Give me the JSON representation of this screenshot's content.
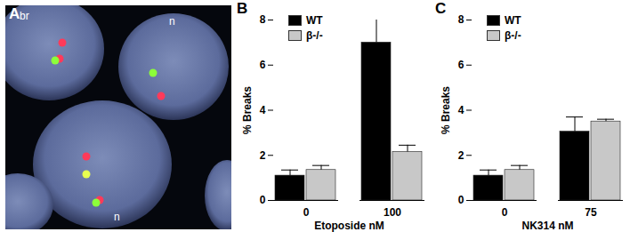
{
  "image_panel": {
    "title": "A",
    "labels": [
      "br",
      "n",
      "n"
    ]
  },
  "chart_data": [
    {
      "type": "bar",
      "title": "B",
      "xlabel": "Etoposide nM",
      "ylabel": "% Breaks",
      "categories": [
        "0",
        "100"
      ],
      "series": [
        {
          "name": "WT",
          "color": "#000000",
          "values": [
            1.1,
            7.0
          ],
          "errors": [
            0.25,
            1.05
          ]
        },
        {
          "name": "β-/-",
          "color": "#c8c8c8",
          "values": [
            1.35,
            2.15
          ],
          "errors": [
            0.2,
            0.3
          ]
        }
      ],
      "ylim": [
        0,
        8
      ],
      "yticks": [
        0,
        2,
        4,
        6,
        8
      ],
      "grid": false,
      "legend": "top-left"
    },
    {
      "type": "bar",
      "title": "C",
      "xlabel": "NK314 nM",
      "ylabel": "% Breaks",
      "categories": [
        "0",
        "75"
      ],
      "series": [
        {
          "name": "WT",
          "color": "#000000",
          "values": [
            1.1,
            3.05
          ],
          "errors": [
            0.25,
            0.65
          ]
        },
        {
          "name": "β-/-",
          "color": "#c8c8c8",
          "values": [
            1.35,
            3.5
          ],
          "errors": [
            0.2,
            0.1
          ]
        }
      ],
      "ylim": [
        0,
        8
      ],
      "yticks": [
        0,
        2,
        4,
        6,
        8
      ],
      "grid": false,
      "legend": "top-left"
    }
  ]
}
